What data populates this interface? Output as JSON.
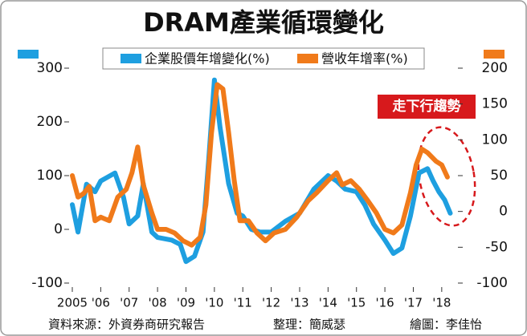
{
  "chart_data": {
    "type": "line",
    "title": "DRAM產業循環變化",
    "annotation": "走下行趨勢",
    "source": "資料來源：外資券商研究報告",
    "compiler": "整理：簡威瑟",
    "illustrator": "繪圖：李佳怡",
    "xlim": [
      2005,
      2018.4
    ],
    "xticks": [
      {
        "value": 2005,
        "label": "2005"
      },
      {
        "value": 2006,
        "label": "'06"
      },
      {
        "value": 2007,
        "label": "'07"
      },
      {
        "value": 2008,
        "label": "'08"
      },
      {
        "value": 2009,
        "label": "'09"
      },
      {
        "value": 2010,
        "label": "'10"
      },
      {
        "value": 2011,
        "label": "'11"
      },
      {
        "value": 2012,
        "label": "'12"
      },
      {
        "value": 2013,
        "label": "'13"
      },
      {
        "value": 2014,
        "label": "'14"
      },
      {
        "value": 2015,
        "label": "'15"
      },
      {
        "value": 2016,
        "label": "'16"
      },
      {
        "value": 2017,
        "label": "'17"
      },
      {
        "value": 2018,
        "label": "'18"
      }
    ],
    "ylim": [
      -100,
      300
    ],
    "yticks": [
      -100,
      0,
      100,
      200,
      300
    ],
    "y2lim": [
      -100,
      200
    ],
    "y2ticks": [
      -100,
      -50,
      0,
      50,
      100,
      150,
      200
    ],
    "series": [
      {
        "name": "企業股價年增變化(%)",
        "color": "#1e9fe0",
        "axis": "y",
        "x": [
          2005,
          2005.2,
          2005.5,
          2005.8,
          2006,
          2006.5,
          2006.8,
          2007,
          2007.3,
          2007.5,
          2007.8,
          2008,
          2008.5,
          2008.8,
          2009,
          2009.3,
          2009.6,
          2009.8,
          2010,
          2010.2,
          2010.5,
          2010.8,
          2011,
          2011.3,
          2011.6,
          2012,
          2012.5,
          2013,
          2013.5,
          2014,
          2014.3,
          2014.6,
          2015,
          2015.3,
          2015.6,
          2016,
          2016.3,
          2016.6,
          2016.9,
          2017.2,
          2017.5,
          2017.7,
          2017.9,
          2018.1,
          2018.3
        ],
        "values": [
          46,
          -5,
          84,
          70,
          90,
          105,
          60,
          10,
          25,
          85,
          -5,
          -15,
          -20,
          -28,
          -60,
          -50,
          -5,
          130,
          278,
          190,
          85,
          30,
          25,
          0,
          -5,
          -5,
          15,
          30,
          75,
          100,
          90,
          75,
          70,
          45,
          10,
          -20,
          -45,
          -35,
          25,
          105,
          113,
          90,
          70,
          55,
          30
        ]
      },
      {
        "name": "營收年增率(%)",
        "color": "#f07a1a",
        "axis": "y2",
        "x": [
          2005,
          2005.2,
          2005.4,
          2005.6,
          2005.8,
          2006,
          2006.3,
          2006.6,
          2006.9,
          2007.1,
          2007.3,
          2007.5,
          2007.8,
          2008,
          2008.3,
          2008.6,
          2008.9,
          2009.2,
          2009.5,
          2009.7,
          2009.9,
          2010.1,
          2010.3,
          2010.5,
          2010.7,
          2010.9,
          2011.2,
          2011.5,
          2011.8,
          2012.1,
          2012.5,
          2012.9,
          2013.3,
          2013.6,
          2014,
          2014.3,
          2014.5,
          2014.8,
          2015.1,
          2015.4,
          2015.7,
          2016,
          2016.3,
          2016.6,
          2016.9,
          2017.1,
          2017.3,
          2017.5,
          2017.8,
          2018,
          2018.2
        ],
        "values": [
          50,
          20,
          25,
          35,
          -13,
          -8,
          -13,
          20,
          31,
          54,
          90,
          37,
          -2,
          -25,
          -25,
          -30,
          -41,
          -47,
          -36,
          9,
          110,
          177,
          171,
          110,
          43,
          -13,
          -13,
          -30,
          -41,
          -30,
          -25,
          -8,
          15,
          26,
          43,
          54,
          37,
          43,
          31,
          15,
          -2,
          -25,
          -30,
          -19,
          26,
          65,
          87,
          82,
          70,
          65,
          48
        ]
      }
    ]
  }
}
